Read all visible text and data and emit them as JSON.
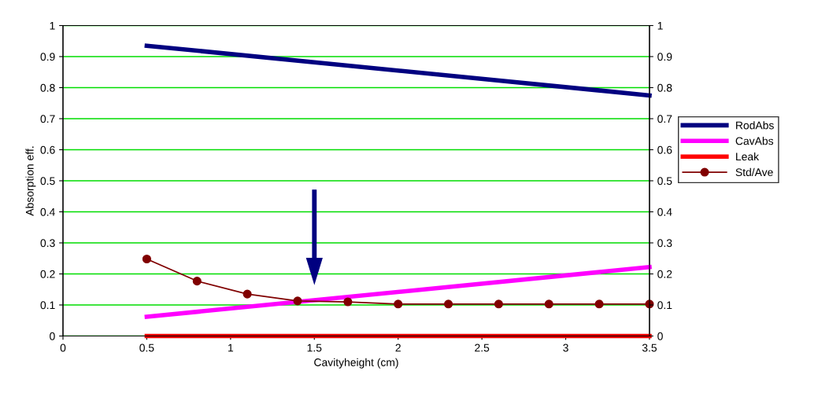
{
  "chart_data": {
    "type": "line",
    "xlabel": "Cavityheight (cm)",
    "ylabel": "Absorption eff.",
    "series": [
      {
        "name": "RodAbs",
        "color": "#000080",
        "x": [
          0.5,
          3.5
        ],
        "values": [
          0.935,
          0.775
        ],
        "marker": "none"
      },
      {
        "name": "CavAbs",
        "color": "#ff00ff",
        "x": [
          0.5,
          3.5
        ],
        "values": [
          0.062,
          0.222
        ],
        "marker": "none"
      },
      {
        "name": "Leak",
        "color": "#ff0000",
        "x": [
          0.5,
          3.5
        ],
        "values": [
          0.0,
          0.0
        ],
        "marker": "none"
      },
      {
        "name": "Std/Ave",
        "color": "#800000",
        "x": [
          0.5,
          0.8,
          1.1,
          1.4,
          1.7,
          2.0,
          2.3,
          2.6,
          2.9,
          3.2,
          3.5
        ],
        "values": [
          0.248,
          0.177,
          0.135,
          0.113,
          0.11,
          0.103,
          0.103,
          0.103,
          0.103,
          0.103,
          0.103
        ],
        "marker": "circle"
      }
    ],
    "xlim": [
      0,
      3.5
    ],
    "xticks": [
      0,
      0.5,
      1,
      1.5,
      2,
      2.5,
      3,
      3.5
    ],
    "ylim": [
      0,
      1
    ],
    "yticks": [
      0,
      0.1,
      0.2,
      0.3,
      0.4,
      0.5,
      0.6,
      0.7,
      0.8,
      0.9,
      1
    ],
    "y2lim": [
      0,
      1
    ],
    "y2ticks": [
      0,
      0.1,
      0.2,
      0.3,
      0.4,
      0.5,
      0.6,
      0.7,
      0.8,
      0.9,
      1
    ],
    "grid": "y",
    "legend": "right"
  }
}
